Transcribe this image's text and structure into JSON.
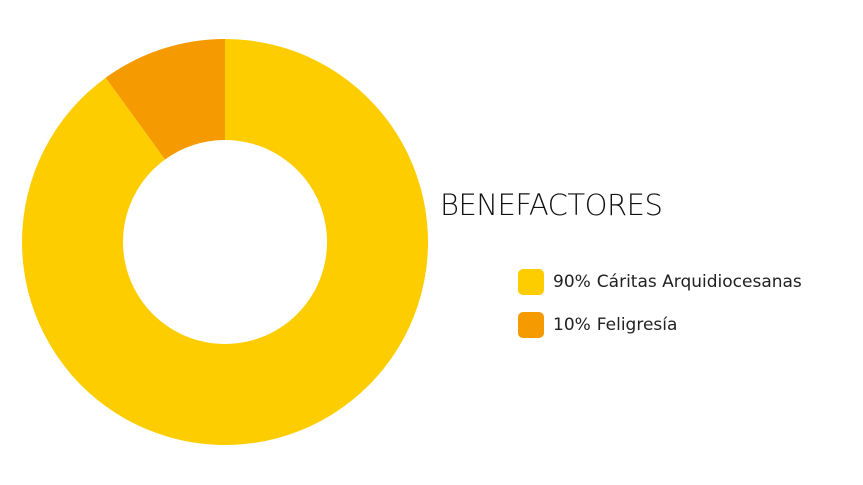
{
  "chart_data": {
    "type": "donut",
    "title": "BENEFACTORES",
    "categories": [
      "Cáritas Arquidiocesanas",
      "Feligresía"
    ],
    "values": [
      90,
      10
    ],
    "value_labels": [
      "90%",
      "10%"
    ],
    "colors": [
      "#fdcd00",
      "#f59a00"
    ],
    "legend_position": "right"
  }
}
